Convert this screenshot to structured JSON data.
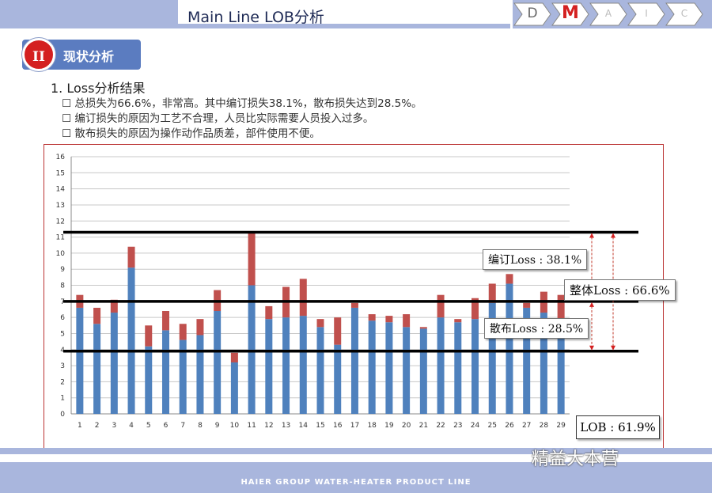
{
  "header": {
    "title": "Main Line LOB分析",
    "steps": [
      "D",
      "M",
      "A",
      "I",
      "C"
    ],
    "active_step": "M"
  },
  "section": {
    "number": "II",
    "label": "现状分析"
  },
  "content": {
    "heading": "1. Loss分析结果",
    "bullets": [
      "☐ 总损失为66.6%，非常高。其中编订损失38.1%，散布损失达到28.5%。",
      "☐ 编订损失的原因为工艺不合理，人员比实际需要人员投入过多。",
      "☐ 散布损失的原因为操作动作品质差，部件使用不便。"
    ]
  },
  "callouts": {
    "bianding": "编订Loss : 38.1%",
    "total": "整体Loss : 66.6%",
    "sanbu": "散布Loss : 28.5%",
    "lob": "LOB : 61.9%"
  },
  "footer": {
    "text": "HAIER GROUP WATER-HEATER PRODUCT LINE",
    "watermark": "精益大本营"
  },
  "colors": {
    "blue_bar": "#4f81bd",
    "red_bar": "#c0504d",
    "band": "#a9b6dd",
    "accent_red": "#d42020"
  },
  "chart_data": {
    "type": "bar",
    "stacked": true,
    "categories": [
      "1",
      "2",
      "3",
      "4",
      "5",
      "6",
      "7",
      "8",
      "9",
      "10",
      "11",
      "12",
      "13",
      "14",
      "15",
      "16",
      "17",
      "18",
      "19",
      "20",
      "21",
      "22",
      "23",
      "24",
      "25",
      "26",
      "27",
      "28",
      "29"
    ],
    "series": [
      {
        "values": [
          6.6,
          5.6,
          6.3,
          9.1,
          4.2,
          5.2,
          4.6,
          4.9,
          6.4,
          3.2,
          8.0,
          5.9,
          6.0,
          6.1,
          5.4,
          4.3,
          6.6,
          5.8,
          5.7,
          5.4,
          5.3,
          6.0,
          5.7,
          5.9,
          6.9,
          8.1,
          6.6,
          6.3,
          4.9
        ]
      },
      {
        "values": [
          0.8,
          1.0,
          0.8,
          1.3,
          1.3,
          1.2,
          1.0,
          1.0,
          1.3,
          0.6,
          3.3,
          0.8,
          1.9,
          2.3,
          0.5,
          1.7,
          0.3,
          0.4,
          0.4,
          0.8,
          0.1,
          1.4,
          0.2,
          1.3,
          1.2,
          0.6,
          0.3,
          1.3,
          2.5
        ]
      }
    ],
    "ylim": [
      0,
      16
    ],
    "yticks": [
      0,
      1,
      2,
      3,
      4,
      5,
      6,
      7,
      8,
      9,
      10,
      11,
      12,
      13,
      14,
      15,
      16
    ],
    "reference_lines": [
      11.3,
      7.0,
      3.9
    ],
    "grid": true,
    "legend": "none"
  }
}
